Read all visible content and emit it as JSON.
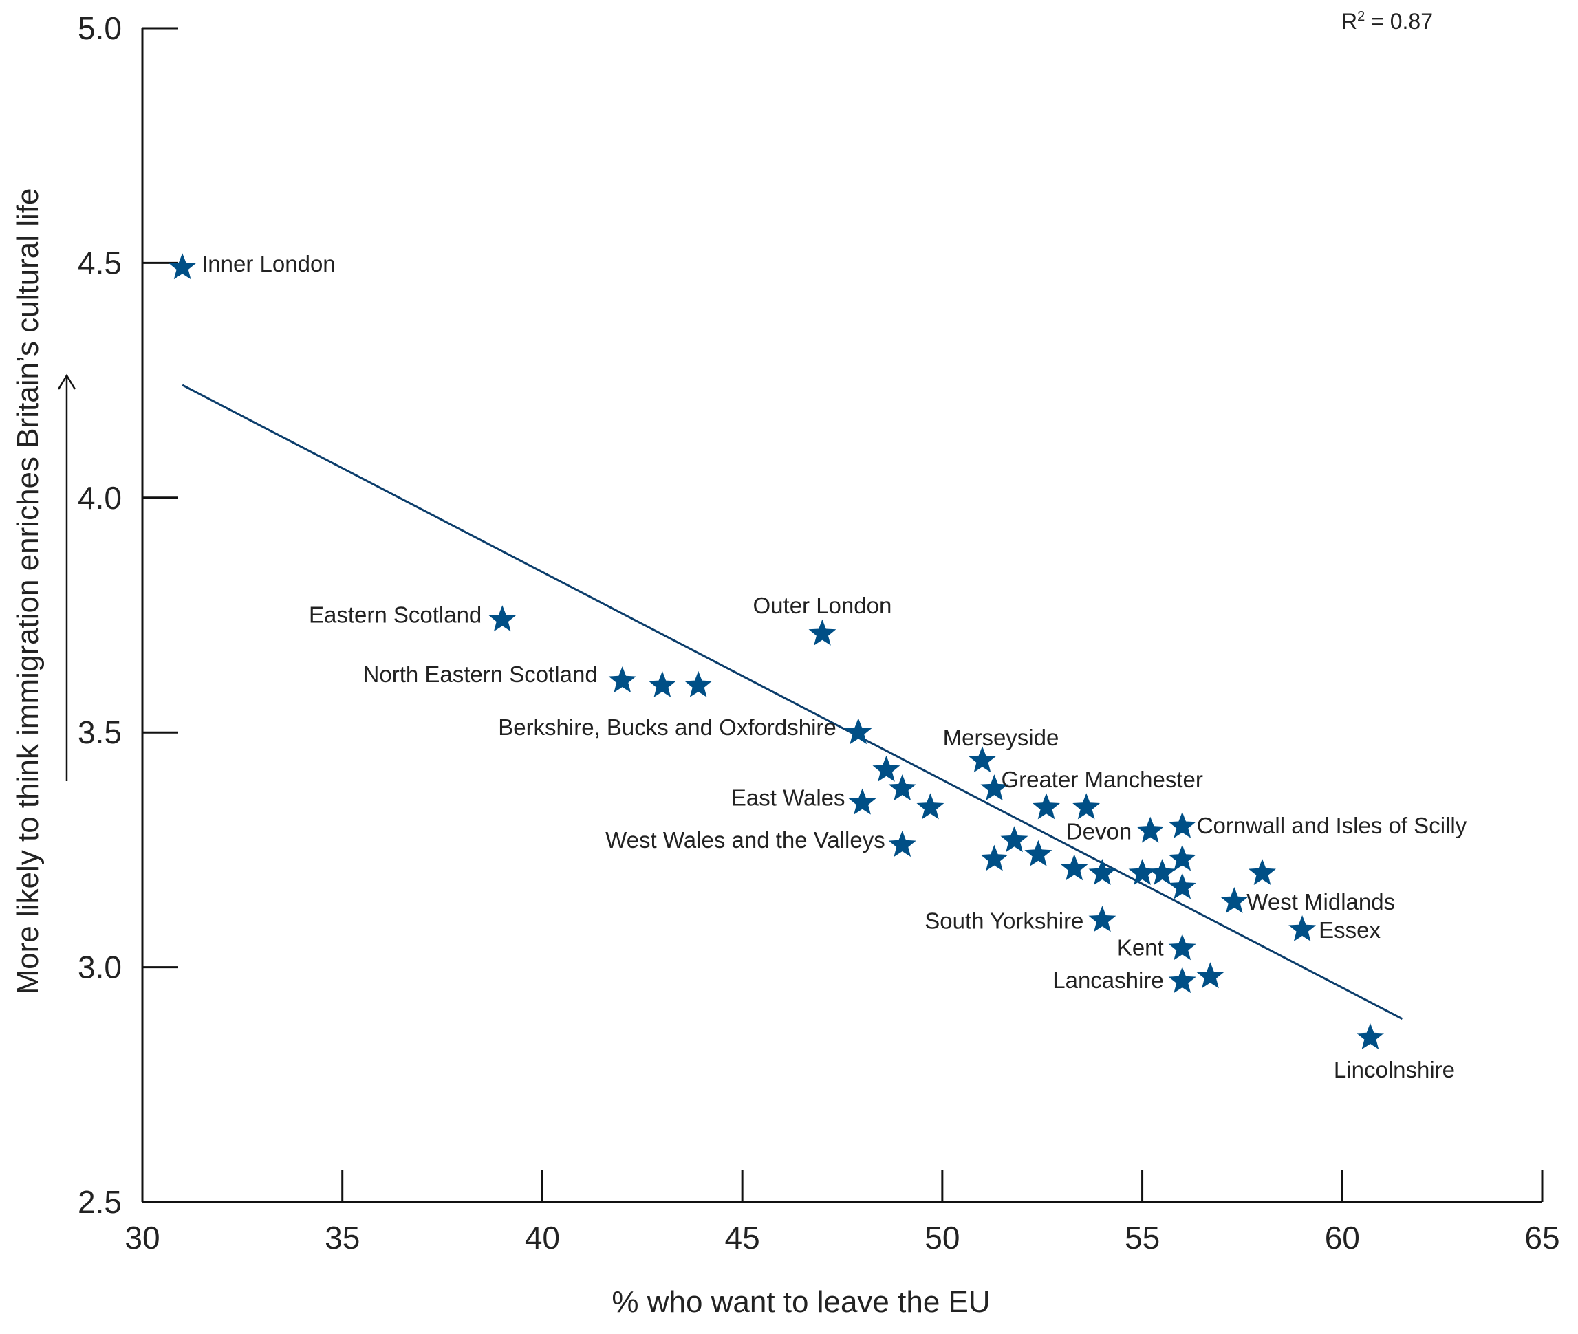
{
  "chart_data": {
    "type": "scatter",
    "title": "",
    "xlabel": "% who want to leave the EU",
    "ylabel": "More likely to think immigration enriches Britain’s cultural life",
    "xlim": [
      30,
      65
    ],
    "ylim": [
      2.5,
      5.0
    ],
    "x_ticks": [
      "30",
      "35",
      "40",
      "45",
      "50",
      "55",
      "60",
      "65"
    ],
    "y_ticks": [
      "2.5",
      "3.0",
      "3.5",
      "4.0",
      "4.5",
      "5.0"
    ],
    "annotation": {
      "r2_prefix": "R",
      "r2_sup": "2",
      "r2_value": " = 0.87"
    },
    "colors": {
      "marker": "#004f86",
      "trendline": "#0b3d6b",
      "axis": "#111111"
    },
    "marker": "star",
    "trendline": {
      "x": [
        31.0,
        61.5
      ],
      "y": [
        4.24,
        2.89
      ]
    },
    "points": [
      {
        "x": 31.0,
        "y": 4.49,
        "label": "Inner London"
      },
      {
        "x": 39.0,
        "y": 3.74,
        "label": "Eastern Scotland"
      },
      {
        "x": 42.0,
        "y": 3.61,
        "label": "North Eastern Scotland"
      },
      {
        "x": 43.0,
        "y": 3.6,
        "label": ""
      },
      {
        "x": 43.9,
        "y": 3.6,
        "label": ""
      },
      {
        "x": 47.0,
        "y": 3.71,
        "label": "Outer London"
      },
      {
        "x": 47.9,
        "y": 3.5,
        "label": "Berkshire, Bucks and Oxfordshire"
      },
      {
        "x": 48.6,
        "y": 3.42,
        "label": ""
      },
      {
        "x": 48.0,
        "y": 3.35,
        "label": "East Wales"
      },
      {
        "x": 49.0,
        "y": 3.38,
        "label": ""
      },
      {
        "x": 49.7,
        "y": 3.34,
        "label": ""
      },
      {
        "x": 49.0,
        "y": 3.26,
        "label": "West Wales and the Valleys"
      },
      {
        "x": 51.0,
        "y": 3.44,
        "label": "Merseyside"
      },
      {
        "x": 51.3,
        "y": 3.38,
        "label": "Greater Manchester"
      },
      {
        "x": 52.6,
        "y": 3.34,
        "label": ""
      },
      {
        "x": 53.6,
        "y": 3.34,
        "label": ""
      },
      {
        "x": 51.8,
        "y": 3.27,
        "label": ""
      },
      {
        "x": 51.3,
        "y": 3.23,
        "label": ""
      },
      {
        "x": 52.4,
        "y": 3.24,
        "label": ""
      },
      {
        "x": 53.3,
        "y": 3.21,
        "label": ""
      },
      {
        "x": 54.0,
        "y": 3.2,
        "label": ""
      },
      {
        "x": 55.0,
        "y": 3.2,
        "label": ""
      },
      {
        "x": 55.5,
        "y": 3.2,
        "label": ""
      },
      {
        "x": 55.2,
        "y": 3.29,
        "label": "Devon"
      },
      {
        "x": 56.0,
        "y": 3.3,
        "label": "Cornwall and Isles of Scilly"
      },
      {
        "x": 56.0,
        "y": 3.23,
        "label": ""
      },
      {
        "x": 56.0,
        "y": 3.17,
        "label": ""
      },
      {
        "x": 58.0,
        "y": 3.2,
        "label": ""
      },
      {
        "x": 57.3,
        "y": 3.14,
        "label": "West Midlands"
      },
      {
        "x": 54.0,
        "y": 3.1,
        "label": "South Yorkshire"
      },
      {
        "x": 59.0,
        "y": 3.08,
        "label": "Essex"
      },
      {
        "x": 56.0,
        "y": 3.04,
        "label": "Kent"
      },
      {
        "x": 56.0,
        "y": 2.97,
        "label": "Lancashire"
      },
      {
        "x": 56.7,
        "y": 2.98,
        "label": ""
      },
      {
        "x": 60.7,
        "y": 2.85,
        "label": "Lincolnshire"
      }
    ]
  }
}
